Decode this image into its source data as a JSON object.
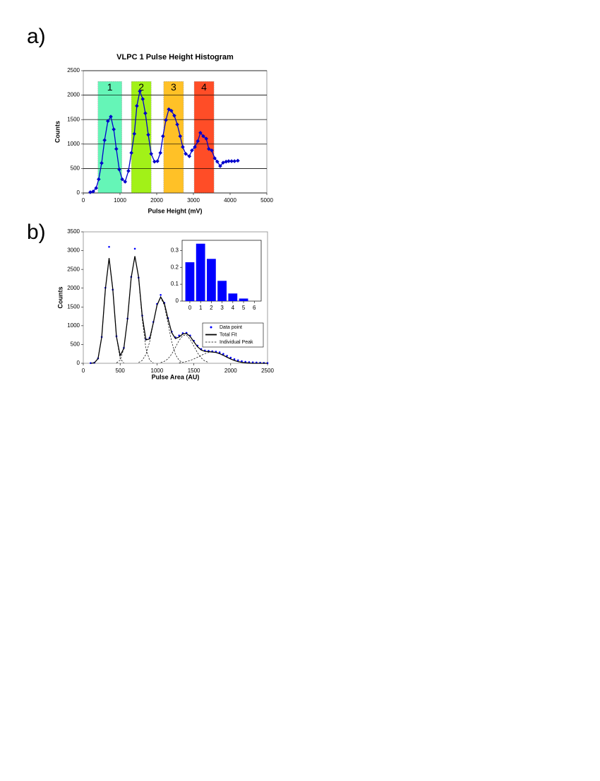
{
  "labels": [
    "a)",
    "b)"
  ],
  "chart_data": [
    {
      "type": "line",
      "title": "VLPC 1 Pulse Height Histogram",
      "xlabel": "Pulse Height (mV)",
      "ylabel": "Counts",
      "x": [
        190,
        270,
        350,
        420,
        500,
        580,
        670,
        750,
        830,
        900,
        980,
        1060,
        1140,
        1230,
        1310,
        1390,
        1460,
        1540,
        1620,
        1690,
        1770,
        1850,
        1940,
        2020,
        2100,
        2170,
        2250,
        2330,
        2400,
        2480,
        2560,
        2640,
        2710,
        2790,
        2890,
        2960,
        3040,
        3120,
        3190,
        3270,
        3350,
        3420,
        3500,
        3580,
        3650,
        3730,
        3810,
        3890,
        3960,
        4040,
        4120,
        4210
      ],
      "values": [
        15,
        30,
        100,
        280,
        610,
        1080,
        1470,
        1560,
        1300,
        900,
        480,
        280,
        230,
        450,
        820,
        1210,
        1780,
        2080,
        1920,
        1630,
        1190,
        800,
        640,
        650,
        820,
        1160,
        1490,
        1710,
        1680,
        1580,
        1400,
        1160,
        940,
        800,
        750,
        870,
        940,
        1060,
        1230,
        1160,
        1110,
        900,
        870,
        710,
        640,
        550,
        620,
        640,
        650,
        650,
        650,
        660
      ],
      "color": "#0000cc",
      "bands": [
        {
          "label": "1",
          "x": [
            400,
            1050
          ],
          "top": 2280,
          "color": "#55f5b0"
        },
        {
          "label": "2",
          "x": [
            1310,
            1850
          ],
          "top": 2280,
          "color": "#99f000"
        },
        {
          "label": "3",
          "x": [
            2190,
            2730
          ],
          "top": 2280,
          "color": "#ffbb10"
        },
        {
          "label": "4",
          "x": [
            3020,
            3560
          ],
          "top": 2280,
          "color": "#ff3a10"
        }
      ],
      "xlim": [
        0,
        5000
      ],
      "xticks": [
        0,
        1000,
        2000,
        3000,
        4000,
        5000
      ],
      "ylim": [
        0,
        2500
      ],
      "yticks": [
        0,
        500,
        1000,
        1500,
        2000,
        2500
      ],
      "grid": true
    },
    {
      "type": "scatter",
      "xlabel": "Pulse Area (AU)",
      "ylabel": "Counts",
      "series": [
        {
          "name": "Data point",
          "color": "#0000ff",
          "style": "dot",
          "x": [
            100,
            150,
            200,
            250,
            300,
            350,
            400,
            450,
            500,
            550,
            600,
            650,
            700,
            750,
            800,
            850,
            900,
            950,
            1000,
            1050,
            1100,
            1150,
            1200,
            1250,
            1300,
            1350,
            1400,
            1450,
            1500,
            1550,
            1600,
            1650,
            1700,
            1750,
            1800,
            1850,
            1900,
            1950,
            2000,
            2050,
            2100,
            2150,
            2200,
            2250,
            2300,
            2350,
            2400,
            2450,
            2500
          ],
          "values": [
            5,
            15,
            130,
            700,
            2010,
            3100,
            1960,
            720,
            230,
            410,
            1190,
            2300,
            3050,
            2280,
            1270,
            640,
            680,
            1100,
            1580,
            1820,
            1610,
            1200,
            840,
            690,
            740,
            800,
            810,
            740,
            600,
            470,
            380,
            340,
            330,
            320,
            310,
            290,
            250,
            200,
            150,
            110,
            80,
            55,
            40,
            30,
            25,
            20,
            15,
            10,
            5
          ]
        },
        {
          "name": "Total Fit",
          "color": "#000000",
          "style": "solid",
          "x": [
            100,
            150,
            200,
            250,
            300,
            350,
            400,
            450,
            500,
            550,
            600,
            650,
            700,
            750,
            800,
            850,
            900,
            950,
            1000,
            1050,
            1100,
            1150,
            1200,
            1250,
            1300,
            1350,
            1400,
            1450,
            1500,
            1550,
            1600,
            1650,
            1700,
            1750,
            1800,
            1850,
            1900,
            1950,
            2000,
            2050,
            2100,
            2150,
            2200,
            2250,
            2300,
            2350,
            2400,
            2450,
            2500
          ],
          "values": [
            0,
            11,
            123,
            698,
            1979,
            2800,
            1979,
            709,
            205,
            397,
            1172,
            2282,
            2850,
            2301,
            1249,
            623,
            650,
            1072,
            1544,
            1768,
            1594,
            1182,
            815,
            660,
            700,
            781,
            794,
            714,
            575,
            440,
            353,
            318,
            311,
            300,
            289,
            257,
            212,
            162,
            114,
            75,
            45,
            25,
            13,
            6,
            0,
            0,
            0,
            0,
            0
          ]
        },
        {
          "name": "Individual Peak",
          "color": "#000000",
          "style": "dashed",
          "curves": [
            {
              "x": [
                150,
                200,
                250,
                300,
                350,
                400,
                450,
                500,
                550
              ],
              "values": [
                11,
                123,
                698,
                1979,
                2800,
                1979,
                698,
                123,
                11
              ]
            },
            {
              "x": [
                450,
                500,
                550,
                600,
                650,
                700,
                750,
                800,
                850,
                900,
                950
              ],
              "values": [
                11,
                82,
                386,
                1172,
                2282,
                2850,
                2282,
                1172,
                386,
                82,
                11
              ]
            },
            {
              "x": [
                750,
                800,
                850,
                900,
                950,
                1000,
                1050,
                1100,
                1150,
                1200,
                1250,
                1300,
                1350
              ],
              "values": [
                19,
                77,
                237,
                568,
                1061,
                1544,
                1750,
                1544,
                1061,
                568,
                237,
                77,
                19
              ]
            },
            {
              "x": [
                1050,
                1100,
                1150,
                1200,
                1250,
                1300,
                1350,
                1400,
                1450,
                1500,
                1550,
                1600,
                1650,
                1700
              ],
              "values": [
                18,
                50,
                121,
                247,
                423,
                610,
                737,
                749,
                639,
                461,
                278,
                141,
                61,
                22
              ]
            },
            {
              "x": [
                1300,
                1350,
                1400,
                1450,
                1500,
                1550,
                1600,
                1650,
                1700,
                1750,
                1800,
                1850,
                1900,
                1950,
                2000,
                2050,
                2100,
                2150,
                2200,
                2250
              ],
              "values": [
                13,
                25,
                45,
                75,
                114,
                162,
                212,
                257,
                289,
                300,
                289,
                257,
                212,
                162,
                114,
                75,
                45,
                25,
                13,
                6
              ]
            }
          ]
        }
      ],
      "xlim": [
        0,
        2500
      ],
      "xticks": [
        0,
        500,
        1000,
        1500,
        2000,
        2500
      ],
      "ylim": [
        0,
        3500
      ],
      "yticks": [
        0,
        500,
        1000,
        1500,
        2000,
        2500,
        3000,
        3500
      ],
      "grid": false,
      "legend": "center right"
    },
    {
      "type": "bar",
      "categories": [
        "0",
        "1",
        "2",
        "3",
        "4",
        "5",
        "6"
      ],
      "values": [
        0.23,
        0.34,
        0.25,
        0.12,
        0.045,
        0.015,
        0
      ],
      "color": "#0000ff",
      "ylim": [
        0,
        0.36
      ],
      "yticks": [
        0,
        0.1,
        0.2,
        0.3
      ]
    }
  ]
}
